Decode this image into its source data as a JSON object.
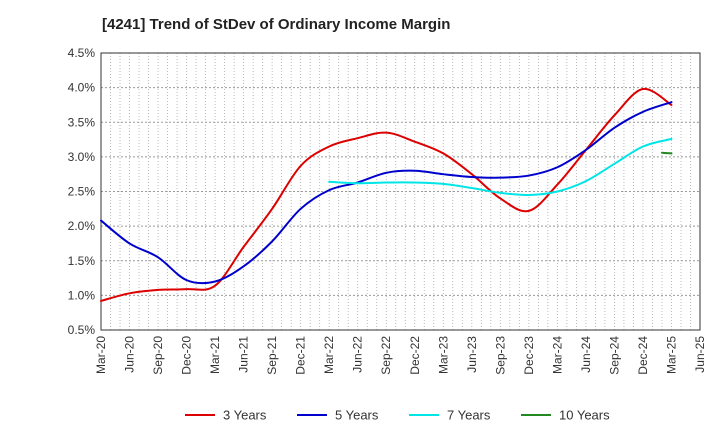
{
  "chart_data": {
    "type": "line",
    "title": "[4241]  Trend of StDev of Ordinary Income Margin",
    "xlabel": "",
    "ylabel": "",
    "y_tick_labels": [
      "0.5%",
      "1.0%",
      "1.5%",
      "2.0%",
      "2.5%",
      "3.0%",
      "3.5%",
      "4.0%",
      "4.5%"
    ],
    "ylim": [
      0.5,
      4.5
    ],
    "x_tick_labels": [
      "Mar-20",
      "Jun-20",
      "Sep-20",
      "Dec-20",
      "Mar-21",
      "Jun-21",
      "Sep-21",
      "Dec-21",
      "Mar-22",
      "Jun-22",
      "Sep-22",
      "Dec-22",
      "Mar-23",
      "Jun-23",
      "Sep-23",
      "Dec-23",
      "Mar-24",
      "Jun-24",
      "Sep-24",
      "Dec-24",
      "Mar-25",
      "Jun-25"
    ],
    "grid": true,
    "legend_position": "bottom",
    "series": [
      {
        "name": "3 Years",
        "color": "#dd0000",
        "points": [
          [
            "Mar-20",
            0.92
          ],
          [
            "Jun-20",
            1.03
          ],
          [
            "Sep-20",
            1.08
          ],
          [
            "Dec-20",
            1.09
          ],
          [
            "Mar-21",
            1.14
          ],
          [
            "Jun-21",
            1.7
          ],
          [
            "Sep-21",
            2.25
          ],
          [
            "Dec-21",
            2.87
          ],
          [
            "Mar-22",
            3.15
          ],
          [
            "Jun-22",
            3.27
          ],
          [
            "Sep-22",
            3.35
          ],
          [
            "Dec-22",
            3.22
          ],
          [
            "Mar-23",
            3.05
          ],
          [
            "Jun-23",
            2.75
          ],
          [
            "Sep-23",
            2.4
          ],
          [
            "Dec-23",
            2.22
          ],
          [
            "Mar-24",
            2.6
          ],
          [
            "Jun-24",
            3.1
          ],
          [
            "Sep-24",
            3.6
          ],
          [
            "Dec-24",
            3.98
          ],
          [
            "Mar-25",
            3.75
          ]
        ]
      },
      {
        "name": "5 Years",
        "color": "#0000cc",
        "points": [
          [
            "Mar-20",
            2.08
          ],
          [
            "Jun-20",
            1.75
          ],
          [
            "Sep-20",
            1.55
          ],
          [
            "Dec-20",
            1.22
          ],
          [
            "Mar-21",
            1.2
          ],
          [
            "Jun-21",
            1.42
          ],
          [
            "Sep-21",
            1.78
          ],
          [
            "Dec-21",
            2.25
          ],
          [
            "Mar-22",
            2.52
          ],
          [
            "Jun-22",
            2.63
          ],
          [
            "Sep-22",
            2.77
          ],
          [
            "Dec-22",
            2.8
          ],
          [
            "Mar-23",
            2.75
          ],
          [
            "Jun-23",
            2.71
          ],
          [
            "Sep-23",
            2.7
          ],
          [
            "Dec-23",
            2.73
          ],
          [
            "Mar-24",
            2.85
          ],
          [
            "Jun-24",
            3.1
          ],
          [
            "Sep-24",
            3.42
          ],
          [
            "Dec-24",
            3.65
          ],
          [
            "Mar-25",
            3.79
          ]
        ]
      },
      {
        "name": "7 Years",
        "color": "#00e5e5",
        "points": [
          [
            "Mar-22",
            2.64
          ],
          [
            "Jun-22",
            2.62
          ],
          [
            "Sep-22",
            2.63
          ],
          [
            "Dec-22",
            2.63
          ],
          [
            "Mar-23",
            2.61
          ],
          [
            "Jun-23",
            2.55
          ],
          [
            "Sep-23",
            2.48
          ],
          [
            "Dec-23",
            2.45
          ],
          [
            "Mar-24",
            2.5
          ],
          [
            "Jun-24",
            2.65
          ],
          [
            "Sep-24",
            2.9
          ],
          [
            "Dec-24",
            3.15
          ],
          [
            "Mar-25",
            3.26
          ]
        ]
      },
      {
        "name": "10 Years",
        "color": "#228822",
        "points": [
          [
            "Feb-25",
            3.06
          ],
          [
            "Mar-25",
            3.05
          ]
        ]
      }
    ]
  }
}
